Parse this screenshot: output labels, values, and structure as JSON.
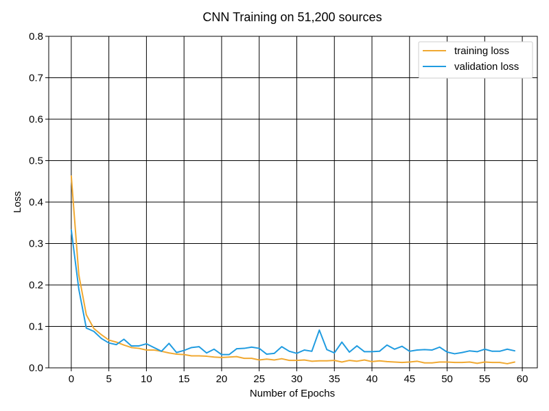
{
  "chart_data": {
    "type": "line",
    "title": "CNN Training on 51,200 sources",
    "xlabel": "Number of Epochs",
    "ylabel": "Loss",
    "xlim": [
      -3,
      62
    ],
    "ylim": [
      0,
      0.8
    ],
    "xticks": [
      0,
      5,
      10,
      15,
      20,
      25,
      30,
      35,
      40,
      45,
      50,
      55,
      60
    ],
    "yticks": [
      0.0,
      0.1,
      0.2,
      0.3,
      0.4,
      0.5,
      0.6,
      0.7,
      0.8
    ],
    "xtick_labels": [
      "0",
      "5",
      "10",
      "15",
      "20",
      "25",
      "30",
      "35",
      "40",
      "45",
      "50",
      "55",
      "60"
    ],
    "ytick_labels": [
      "0.0",
      "0.1",
      "0.2",
      "0.3",
      "0.4",
      "0.5",
      "0.6",
      "0.7",
      "0.8"
    ],
    "grid": true,
    "legend_position": "top-right",
    "x": [
      0,
      1,
      2,
      3,
      4,
      5,
      6,
      7,
      8,
      9,
      10,
      11,
      12,
      13,
      14,
      15,
      16,
      17,
      18,
      19,
      20,
      21,
      22,
      23,
      24,
      25,
      26,
      27,
      28,
      29,
      30,
      31,
      32,
      33,
      34,
      35,
      36,
      37,
      38,
      39,
      40,
      41,
      42,
      43,
      44,
      45,
      46,
      47,
      48,
      49,
      50,
      51,
      52,
      53,
      54,
      55,
      56,
      57,
      58,
      59
    ],
    "series": [
      {
        "name": "training loss",
        "color": "#f0a830",
        "values": [
          0.463,
          0.225,
          0.128,
          0.095,
          0.08,
          0.067,
          0.062,
          0.055,
          0.049,
          0.047,
          0.043,
          0.043,
          0.04,
          0.036,
          0.033,
          0.032,
          0.029,
          0.029,
          0.028,
          0.026,
          0.025,
          0.026,
          0.027,
          0.023,
          0.023,
          0.019,
          0.021,
          0.019,
          0.022,
          0.018,
          0.018,
          0.019,
          0.016,
          0.017,
          0.017,
          0.018,
          0.014,
          0.018,
          0.016,
          0.019,
          0.015,
          0.017,
          0.015,
          0.014,
          0.013,
          0.014,
          0.016,
          0.012,
          0.012,
          0.014,
          0.014,
          0.013,
          0.013,
          0.014,
          0.011,
          0.014,
          0.013,
          0.013,
          0.01,
          0.014
        ]
      },
      {
        "name": "validation loss",
        "color": "#1f9be0",
        "values": [
          0.333,
          0.19,
          0.096,
          0.088,
          0.071,
          0.06,
          0.056,
          0.069,
          0.053,
          0.053,
          0.058,
          0.049,
          0.04,
          0.059,
          0.037,
          0.042,
          0.049,
          0.051,
          0.036,
          0.045,
          0.032,
          0.032,
          0.046,
          0.047,
          0.05,
          0.047,
          0.033,
          0.035,
          0.051,
          0.04,
          0.035,
          0.043,
          0.04,
          0.091,
          0.044,
          0.036,
          0.062,
          0.038,
          0.053,
          0.039,
          0.039,
          0.04,
          0.055,
          0.045,
          0.052,
          0.04,
          0.043,
          0.044,
          0.043,
          0.05,
          0.038,
          0.034,
          0.037,
          0.041,
          0.039,
          0.045,
          0.04,
          0.04,
          0.045,
          0.041
        ]
      }
    ]
  }
}
